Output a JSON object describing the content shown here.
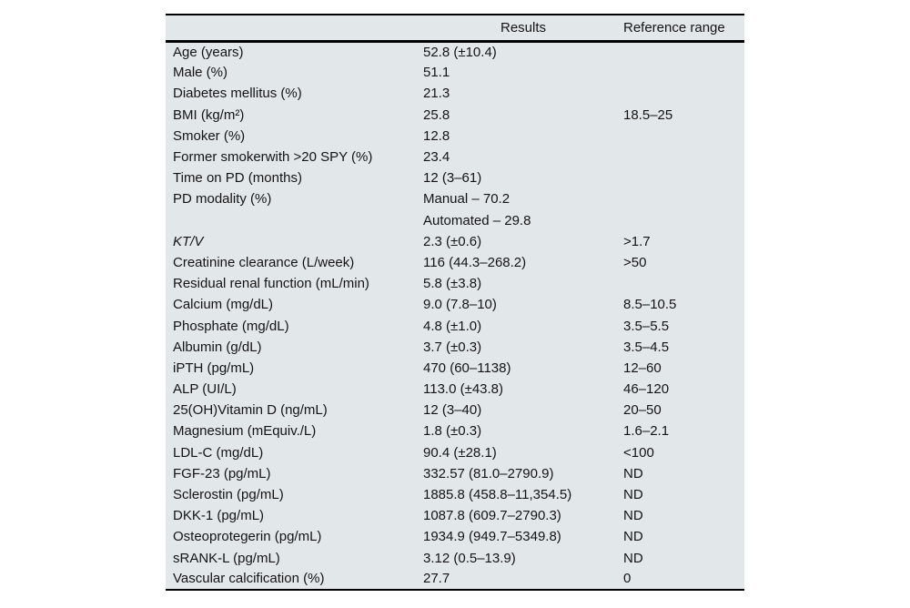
{
  "colors": {
    "table_background": "#e2e7e9",
    "rule_color": "#000000",
    "text_color": "#141414",
    "page_background": "#ffffff"
  },
  "table": {
    "columns": [
      "",
      "Results",
      "Reference range"
    ],
    "rows": [
      {
        "label": "Age (years)",
        "result": "52.8 (±10.4)",
        "ref": "",
        "italic": false
      },
      {
        "label": "Male (%)",
        "result": "51.1",
        "ref": "",
        "italic": false
      },
      {
        "label": "Diabetes mellitus (%)",
        "result": "21.3",
        "ref": "",
        "italic": false
      },
      {
        "label": "BMI (kg/m²)",
        "result": "25.8",
        "ref": "18.5–25",
        "italic": false
      },
      {
        "label": "Smoker (%)",
        "result": "12.8",
        "ref": "",
        "italic": false
      },
      {
        "label": "Former smokerwith >20 SPY (%)",
        "result": "23.4",
        "ref": "",
        "italic": false
      },
      {
        "label": "Time on PD (months)",
        "result": "12 (3–61)",
        "ref": "",
        "italic": false
      },
      {
        "label": "PD modality (%)",
        "result": "Manual – 70.2",
        "ref": "",
        "italic": false
      },
      {
        "label": "",
        "result": "Automated – 29.8",
        "ref": "",
        "italic": false
      },
      {
        "label": "KT/V",
        "result": "2.3 (±0.6)",
        "ref": ">1.7",
        "italic": true
      },
      {
        "label": "Creatinine clearance (L/week)",
        "result": "116 (44.3–268.2)",
        "ref": ">50",
        "italic": false
      },
      {
        "label": "Residual renal function (mL/min)",
        "result": "5.8 (±3.8)",
        "ref": "",
        "italic": false
      },
      {
        "label": "Calcium (mg/dL)",
        "result": "9.0 (7.8–10)",
        "ref": "8.5–10.5",
        "italic": false
      },
      {
        "label": "Phosphate (mg/dL)",
        "result": "4.8 (±1.0)",
        "ref": "3.5–5.5",
        "italic": false
      },
      {
        "label": "Albumin (g/dL)",
        "result": "3.7 (±0.3)",
        "ref": "3.5–4.5",
        "italic": false
      },
      {
        "label": "iPTH (pg/mL)",
        "result": "470 (60–1138)",
        "ref": "12–60",
        "italic": false
      },
      {
        "label": "ALP (UI/L)",
        "result": "113.0 (±43.8)",
        "ref": "46–120",
        "italic": false
      },
      {
        "label": "25(OH)Vitamin D (ng/mL)",
        "result": "12 (3–40)",
        "ref": "20–50",
        "italic": false
      },
      {
        "label": "Magnesium (mEquiv./L)",
        "result": "1.8 (±0.3)",
        "ref": "1.6–2.1",
        "italic": false
      },
      {
        "label": "LDL-C (mg/dL)",
        "result": "90.4 (±28.1)",
        "ref": "<100",
        "italic": false
      },
      {
        "label": "FGF-23 (pg/mL)",
        "result": "332.57 (81.0–2790.9)",
        "ref": "ND",
        "italic": false
      },
      {
        "label": "Sclerostin (pg/mL)",
        "result": "1885.8 (458.8–11,354.5)",
        "ref": "ND",
        "italic": false
      },
      {
        "label": "DKK-1 (pg/mL)",
        "result": "1087.8 (609.7–2790.3)",
        "ref": "ND",
        "italic": false
      },
      {
        "label": "Osteoprotegerin (pg/mL)",
        "result": "1934.9 (949.7–5349.8)",
        "ref": "ND",
        "italic": false
      },
      {
        "label": "sRANK-L (pg/mL)",
        "result": "3.12 (0.5–13.9)",
        "ref": "ND",
        "italic": false
      },
      {
        "label": "Vascular calcification (%)",
        "result": "27.7",
        "ref": "0",
        "italic": false
      }
    ]
  }
}
